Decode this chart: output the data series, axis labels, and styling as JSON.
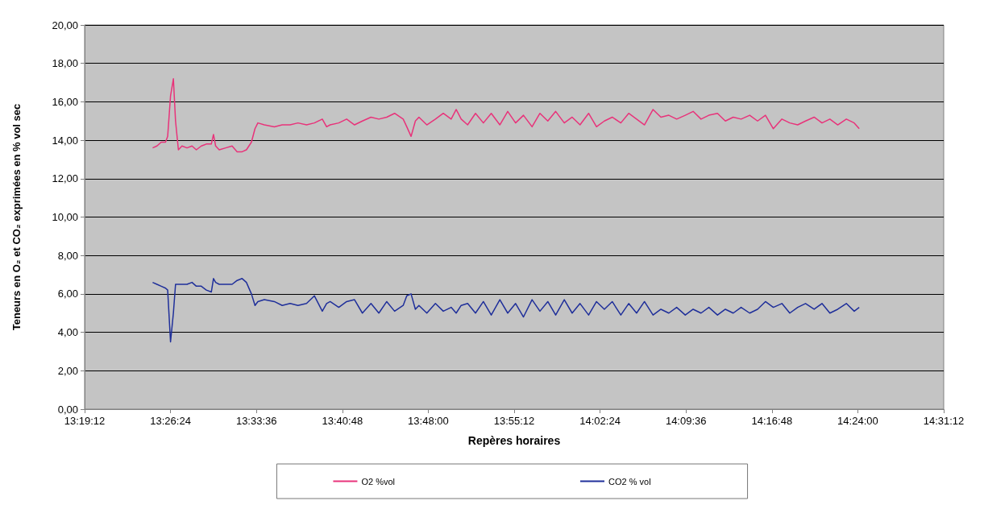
{
  "chart_data": {
    "type": "line",
    "xlabel": "Repères horaires",
    "ylabel": "Teneurs en O₂ et CO₂ exprimées en % vol sec",
    "x": [
      13.415,
      13.421,
      13.427,
      13.433,
      13.436,
      13.44,
      13.444,
      13.447,
      13.451,
      13.456,
      13.463,
      13.47,
      13.476,
      13.483,
      13.49,
      13.497,
      13.5,
      13.503,
      13.508,
      13.517,
      13.526,
      13.533,
      13.54,
      13.546,
      13.553,
      13.558,
      13.562,
      13.571,
      13.585,
      13.596,
      13.607,
      13.618,
      13.63,
      13.641,
      13.652,
      13.658,
      13.663,
      13.675,
      13.686,
      13.697,
      13.708,
      13.72,
      13.731,
      13.742,
      13.753,
      13.765,
      13.77,
      13.776,
      13.782,
      13.787,
      13.798,
      13.81,
      13.821,
      13.832,
      13.839,
      13.846,
      13.855,
      13.866,
      13.877,
      13.888,
      13.9,
      13.911,
      13.922,
      13.933,
      13.945,
      13.956,
      13.967,
      13.978,
      13.99,
      14.001,
      14.012,
      14.024,
      14.035,
      14.046,
      14.057,
      14.069,
      14.08,
      14.091,
      14.102,
      14.114,
      14.125,
      14.136,
      14.147,
      14.159,
      14.17,
      14.181,
      14.192,
      14.204,
      14.215,
      14.226,
      14.237,
      14.249,
      14.26,
      14.271,
      14.282,
      14.294,
      14.305,
      14.316,
      14.327,
      14.339,
      14.35,
      14.361,
      14.372,
      14.384,
      14.395,
      14.402
    ],
    "series": [
      {
        "name": "O2 %vol",
        "color": "#e8337a",
        "values": [
          13.6,
          13.7,
          13.9,
          13.9,
          14.2,
          16.3,
          17.2,
          15.0,
          13.5,
          13.7,
          13.6,
          13.7,
          13.5,
          13.7,
          13.8,
          13.8,
          14.3,
          13.7,
          13.5,
          13.6,
          13.7,
          13.4,
          13.4,
          13.5,
          13.9,
          14.6,
          14.9,
          14.8,
          14.7,
          14.8,
          14.8,
          14.9,
          14.8,
          14.9,
          15.1,
          14.7,
          14.8,
          14.9,
          15.1,
          14.8,
          15.0,
          15.2,
          15.1,
          15.2,
          15.4,
          15.1,
          14.7,
          14.2,
          15.0,
          15.2,
          14.8,
          15.1,
          15.4,
          15.1,
          15.6,
          15.1,
          14.8,
          15.4,
          14.9,
          15.4,
          14.8,
          15.5,
          14.9,
          15.3,
          14.7,
          15.4,
          15.0,
          15.5,
          14.9,
          15.2,
          14.8,
          15.4,
          14.7,
          15.0,
          15.2,
          14.9,
          15.4,
          15.1,
          14.8,
          15.6,
          15.2,
          15.3,
          15.1,
          15.3,
          15.5,
          15.1,
          15.3,
          15.4,
          15.0,
          15.2,
          15.1,
          15.3,
          15.0,
          15.3,
          14.6,
          15.1,
          14.9,
          14.8,
          15.0,
          15.2,
          14.9,
          15.1,
          14.8,
          15.1,
          14.9,
          14.6
        ]
      },
      {
        "name": "CO2 % vol",
        "color": "#1f2f9a",
        "values": [
          6.6,
          6.5,
          6.4,
          6.3,
          6.2,
          3.5,
          5.0,
          6.5,
          6.5,
          6.5,
          6.5,
          6.6,
          6.4,
          6.4,
          6.2,
          6.1,
          6.8,
          6.6,
          6.5,
          6.5,
          6.5,
          6.7,
          6.8,
          6.6,
          6.0,
          5.4,
          5.6,
          5.7,
          5.6,
          5.4,
          5.5,
          5.4,
          5.5,
          5.9,
          5.1,
          5.5,
          5.6,
          5.3,
          5.6,
          5.7,
          5.0,
          5.5,
          5.0,
          5.6,
          5.1,
          5.4,
          5.9,
          6.0,
          5.2,
          5.4,
          5.0,
          5.5,
          5.1,
          5.3,
          5.0,
          5.4,
          5.5,
          5.0,
          5.6,
          4.9,
          5.7,
          5.0,
          5.5,
          4.8,
          5.7,
          5.1,
          5.6,
          4.9,
          5.7,
          5.0,
          5.5,
          4.9,
          5.6,
          5.2,
          5.6,
          4.9,
          5.5,
          5.0,
          5.6,
          4.9,
          5.2,
          5.0,
          5.3,
          4.9,
          5.2,
          5.0,
          5.3,
          4.9,
          5.2,
          5.0,
          5.3,
          5.0,
          5.2,
          5.6,
          5.3,
          5.5,
          5.0,
          5.3,
          5.5,
          5.2,
          5.5,
          5.0,
          5.2,
          5.5,
          5.1,
          5.3
        ]
      }
    ],
    "xlim": [
      13.32,
      14.52
    ],
    "xticks": [
      {
        "value": 13.32,
        "label": "13:19:12"
      },
      {
        "value": 13.44,
        "label": "13:26:24"
      },
      {
        "value": 13.56,
        "label": "13:33:36"
      },
      {
        "value": 13.68,
        "label": "13:40:48"
      },
      {
        "value": 13.8,
        "label": "13:48:00"
      },
      {
        "value": 13.92,
        "label": "13:55:12"
      },
      {
        "value": 14.04,
        "label": "14:02:24"
      },
      {
        "value": 14.16,
        "label": "14:09:36"
      },
      {
        "value": 14.28,
        "label": "14:16:48"
      },
      {
        "value": 14.4,
        "label": "14:24:00"
      },
      {
        "value": 14.52,
        "label": "14:31:12"
      }
    ],
    "ylim": [
      0,
      20
    ],
    "yticks": [
      {
        "value": 0,
        "label": "0,00"
      },
      {
        "value": 2,
        "label": "2,00"
      },
      {
        "value": 4,
        "label": "4,00"
      },
      {
        "value": 6,
        "label": "6,00"
      },
      {
        "value": 8,
        "label": "8,00"
      },
      {
        "value": 10,
        "label": "10,00"
      },
      {
        "value": 12,
        "label": "12,00"
      },
      {
        "value": 14,
        "label": "14,00"
      },
      {
        "value": 16,
        "label": "16,00"
      },
      {
        "value": 18,
        "label": "18,00"
      },
      {
        "value": 20,
        "label": "20,00"
      }
    ],
    "grid": "y",
    "legend": "bottom",
    "marker": "none",
    "line_style": "solid"
  }
}
